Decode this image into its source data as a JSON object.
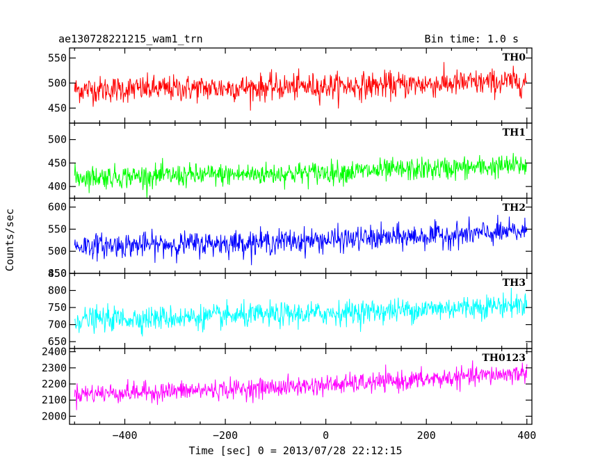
{
  "title_left": "ae130728221215_wam1_trn",
  "title_right": "Bin time: 1.0 s",
  "xlabel": "Time [sec] 0 = 2013/07/28 22:12:15",
  "ylabel": "Counts/sec",
  "chart_data": {
    "type": "line",
    "xlim": [
      -510,
      410
    ],
    "x_start": -500,
    "x_end": 400,
    "bin_time": 1.0,
    "x_ticks": [
      -400,
      -200,
      0,
      200,
      400
    ],
    "x_tick_labels": [
      "−400",
      "−200",
      "0",
      "200",
      "400"
    ],
    "panels": [
      {
        "name": "TH0",
        "color": "#ff0000",
        "ylim": [
          420,
          570
        ],
        "y_ticks": [
          450,
          500,
          550
        ],
        "trend_start": 487,
        "trend_end": 503,
        "noise_amplitude": 24
      },
      {
        "name": "TH1",
        "color": "#00ff00",
        "ylim": [
          375,
          535
        ],
        "y_ticks": [
          400,
          450,
          500
        ],
        "trend_start": 420,
        "trend_end": 445,
        "noise_amplitude": 22
      },
      {
        "name": "TH2",
        "color": "#0000ff",
        "ylim": [
          450,
          620
        ],
        "y_ticks": [
          450,
          500,
          550,
          600
        ],
        "trend_start": 512,
        "trend_end": 545,
        "noise_amplitude": 25
      },
      {
        "name": "TH3",
        "color": "#00ffff",
        "ylim": [
          630,
          850
        ],
        "y_ticks": [
          650,
          700,
          750,
          800,
          850
        ],
        "trend_start": 715,
        "trend_end": 760,
        "noise_amplitude": 32
      },
      {
        "name": "TH0123",
        "color": "#ff00ff",
        "ylim": [
          1950,
          2420
        ],
        "y_ticks": [
          2000,
          2100,
          2200,
          2300,
          2400
        ],
        "trend_start": 2140,
        "trend_end": 2270,
        "noise_amplitude": 55
      }
    ]
  }
}
